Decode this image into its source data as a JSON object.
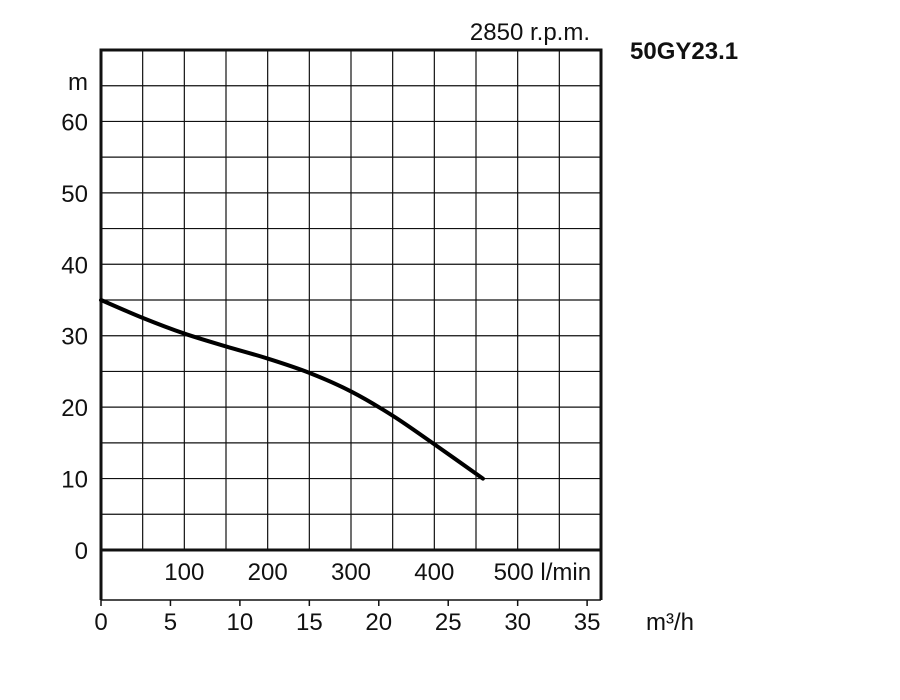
{
  "chart_data": {
    "type": "line",
    "speed_label": "2850 r.p.m.",
    "model_label": "50GY23.1",
    "y_unit": "m",
    "y_ticks": [
      "0",
      "10",
      "20",
      "30",
      "40",
      "50",
      "60"
    ],
    "ylim": [
      0,
      70
    ],
    "x_flow_lmin_ticks": [
      "100",
      "200",
      "300",
      "400",
      "500 l/min"
    ],
    "x_flow_lmin_values": [
      100,
      200,
      300,
      400,
      500
    ],
    "x_flow_m3h_ticks": [
      "0",
      "5",
      "10",
      "15",
      "20",
      "25",
      "30",
      "35"
    ],
    "x_flow_m3h_values": [
      0,
      5,
      10,
      15,
      20,
      25,
      30,
      35
    ],
    "x_unit": "m³/h",
    "xlim": [
      0,
      36
    ],
    "grid": true,
    "series": [
      {
        "x": [
          0,
          3,
          6,
          9,
          12,
          15,
          18,
          21,
          24,
          27.5
        ],
        "y": [
          35,
          32.5,
          30.3,
          28.5,
          26.8,
          24.8,
          22.2,
          18.8,
          14.8,
          10
        ]
      }
    ]
  }
}
